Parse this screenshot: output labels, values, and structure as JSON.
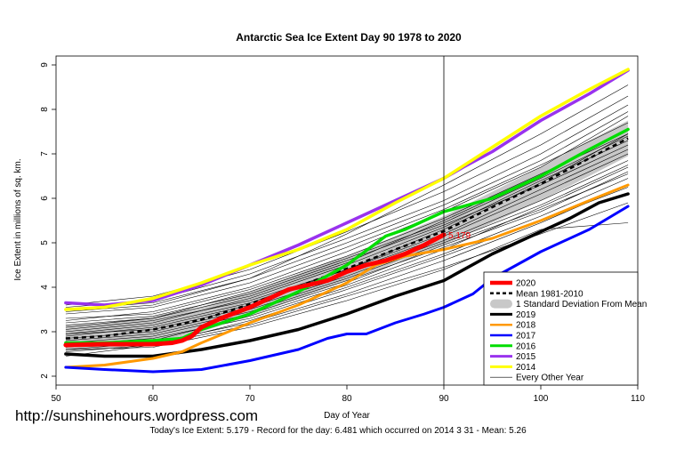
{
  "watermark": "http://sunshinehours.wordpress.com",
  "footer": "Today's Ice Extent: 5.179  - Record for the day: 6.481 which occurred on 2014 3 31  - Mean: 5.26",
  "chart_data": {
    "type": "line",
    "title": "Antarctic Sea Ice Extent Day 90 1978 to 2020",
    "xlabel": "Day of Year",
    "ylabel": "Ice Extent in millions of sq. km.",
    "xlim": [
      50,
      110
    ],
    "ylim": [
      1.8,
      9.2
    ],
    "xticks": [
      50,
      60,
      70,
      80,
      90,
      100,
      110
    ],
    "yticks": [
      2,
      3,
      4,
      5,
      6,
      7,
      8,
      9
    ],
    "grid": false,
    "legend_position": "bottom-right",
    "marker_line_x": 90,
    "current_value_label": "5.179",
    "current_value_point": [
      90,
      5.179
    ],
    "std_band": {
      "name": "1 Standard Deviation From Mean",
      "x": [
        51,
        55,
        60,
        65,
        70,
        75,
        80,
        85,
        90,
        95,
        100,
        105,
        109
      ],
      "lower": [
        2.55,
        2.6,
        2.75,
        3.0,
        3.35,
        3.75,
        4.15,
        4.55,
        4.95,
        5.45,
        5.95,
        6.5,
        6.95
      ],
      "upper": [
        3.15,
        3.2,
        3.35,
        3.55,
        3.9,
        4.3,
        4.7,
        5.15,
        5.6,
        6.15,
        6.7,
        7.3,
        7.75
      ]
    },
    "series": [
      {
        "name": "2020",
        "color": "#ff0000",
        "width": 5,
        "dash": "",
        "x": [
          51,
          55,
          60,
          62,
          63,
          64,
          65,
          67,
          70,
          72,
          74,
          76,
          78,
          80,
          82,
          84,
          86,
          88,
          90
        ],
        "y": [
          2.7,
          2.72,
          2.72,
          2.75,
          2.8,
          2.9,
          3.1,
          3.3,
          3.55,
          3.75,
          3.95,
          4.05,
          4.15,
          4.35,
          4.5,
          4.6,
          4.75,
          4.95,
          5.179
        ]
      },
      {
        "name": "Mean 1981-2010",
        "color": "#000000",
        "width": 2.5,
        "dash": "5,4",
        "x": [
          51,
          55,
          60,
          65,
          70,
          75,
          80,
          85,
          90,
          95,
          100,
          105,
          109
        ],
        "y": [
          2.85,
          2.9,
          3.05,
          3.27,
          3.62,
          4.02,
          4.42,
          4.85,
          5.26,
          5.8,
          6.32,
          6.9,
          7.35
        ]
      },
      {
        "name": "2019",
        "color": "#000000",
        "width": 3.5,
        "dash": "",
        "x": [
          51,
          55,
          60,
          65,
          70,
          75,
          80,
          85,
          90,
          95,
          100,
          103,
          106,
          109
        ],
        "y": [
          2.5,
          2.45,
          2.45,
          2.6,
          2.8,
          3.05,
          3.4,
          3.8,
          4.15,
          4.75,
          5.25,
          5.55,
          5.9,
          6.1
        ]
      },
      {
        "name": "2018",
        "color": "#ff9900",
        "width": 3,
        "dash": "",
        "x": [
          51,
          55,
          60,
          63,
          65,
          70,
          75,
          80,
          83,
          86,
          90,
          95,
          100,
          105,
          109
        ],
        "y": [
          2.2,
          2.25,
          2.4,
          2.55,
          2.75,
          3.2,
          3.6,
          4.1,
          4.5,
          4.7,
          4.85,
          5.1,
          5.5,
          5.95,
          6.3
        ]
      },
      {
        "name": "2017",
        "color": "#0000ff",
        "width": 3,
        "dash": "",
        "x": [
          51,
          55,
          60,
          65,
          70,
          75,
          78,
          80,
          82,
          85,
          88,
          90,
          93,
          95,
          100,
          105,
          109
        ],
        "y": [
          2.2,
          2.15,
          2.1,
          2.15,
          2.35,
          2.6,
          2.85,
          2.95,
          2.95,
          3.2,
          3.4,
          3.55,
          3.85,
          4.2,
          4.8,
          5.3,
          5.82
        ]
      },
      {
        "name": "2016",
        "color": "#00dd00",
        "width": 3.5,
        "dash": "",
        "x": [
          51,
          55,
          60,
          63,
          65,
          70,
          75,
          80,
          84,
          86,
          90,
          95,
          100,
          105,
          109
        ],
        "y": [
          2.75,
          2.75,
          2.8,
          2.85,
          3.05,
          3.4,
          3.9,
          4.5,
          5.15,
          5.3,
          5.7,
          6.0,
          6.5,
          7.1,
          7.55
        ]
      },
      {
        "name": "2015",
        "color": "#9933ee",
        "width": 3.5,
        "dash": "",
        "x": [
          51,
          55,
          60,
          65,
          70,
          75,
          80,
          85,
          90,
          92,
          95,
          100,
          105,
          109
        ],
        "y": [
          3.65,
          3.6,
          3.7,
          4.05,
          4.5,
          4.95,
          5.45,
          5.95,
          6.45,
          6.7,
          7.05,
          7.75,
          8.35,
          8.88
        ]
      },
      {
        "name": "2014",
        "color": "#ffff00",
        "width": 3.5,
        "dash": "",
        "x": [
          51,
          55,
          60,
          65,
          70,
          75,
          80,
          85,
          90,
          95,
          100,
          105,
          109
        ],
        "y": [
          3.5,
          3.55,
          3.75,
          4.1,
          4.5,
          4.85,
          5.3,
          5.9,
          6.45,
          7.15,
          7.85,
          8.45,
          8.9
        ]
      },
      {
        "name": "Every Other Year",
        "color": "#000000",
        "width": 0.6,
        "dash": "",
        "group": "other",
        "x": [
          51,
          60,
          70,
          80,
          90,
          100,
          109
        ],
        "y": [
          3.05,
          3.25,
          3.7,
          4.4,
          5.3,
          6.35,
          7.45
        ]
      },
      {
        "name": "",
        "color": "#000000",
        "width": 0.6,
        "dash": "",
        "group": "other",
        "x": [
          51,
          60,
          70,
          80,
          90,
          100,
          109
        ],
        "y": [
          2.8,
          2.95,
          3.45,
          4.15,
          4.9,
          5.7,
          6.6
        ]
      },
      {
        "name": "",
        "color": "#000000",
        "width": 0.6,
        "dash": "",
        "group": "other",
        "x": [
          51,
          60,
          70,
          80,
          90,
          100,
          109
        ],
        "y": [
          3.4,
          3.55,
          4.1,
          4.9,
          5.75,
          6.75,
          7.7
        ]
      },
      {
        "name": "",
        "color": "#000000",
        "width": 0.6,
        "dash": "",
        "group": "other",
        "x": [
          51,
          60,
          70,
          80,
          90,
          100,
          109
        ],
        "y": [
          2.6,
          2.75,
          3.2,
          3.85,
          4.6,
          5.45,
          6.3
        ]
      },
      {
        "name": "",
        "color": "#000000",
        "width": 0.6,
        "dash": "",
        "group": "other",
        "x": [
          51,
          60,
          70,
          80,
          90,
          100,
          109
        ],
        "y": [
          3.2,
          3.35,
          3.85,
          4.6,
          5.4,
          6.3,
          7.2
        ]
      },
      {
        "name": "",
        "color": "#000000",
        "width": 0.6,
        "dash": "",
        "group": "other",
        "x": [
          51,
          60,
          70,
          80,
          90,
          100,
          109
        ],
        "y": [
          2.95,
          3.05,
          3.55,
          4.25,
          5.05,
          5.95,
          6.85
        ]
      },
      {
        "name": "",
        "color": "#000000",
        "width": 0.6,
        "dash": "",
        "group": "other",
        "x": [
          51,
          60,
          70,
          80,
          90,
          100,
          109
        ],
        "y": [
          3.55,
          3.7,
          4.3,
          5.1,
          5.95,
          7.0,
          8.1
        ]
      },
      {
        "name": "",
        "color": "#000000",
        "width": 0.6,
        "dash": "",
        "group": "other",
        "x": [
          51,
          60,
          70,
          80,
          90,
          100,
          109
        ],
        "y": [
          2.7,
          2.85,
          3.3,
          4.0,
          4.75,
          5.6,
          6.45
        ]
      },
      {
        "name": "",
        "color": "#000000",
        "width": 0.6,
        "dash": "",
        "group": "other",
        "x": [
          51,
          60,
          70,
          80,
          90,
          100,
          109
        ],
        "y": [
          3.1,
          3.3,
          3.8,
          4.55,
          5.5,
          6.5,
          7.55
        ]
      },
      {
        "name": "",
        "color": "#000000",
        "width": 0.6,
        "dash": "",
        "group": "other",
        "x": [
          51,
          60,
          70,
          80,
          90,
          100,
          109
        ],
        "y": [
          2.9,
          3.1,
          3.6,
          4.35,
          5.15,
          6.1,
          7.0
        ]
      },
      {
        "name": "",
        "color": "#000000",
        "width": 0.6,
        "dash": "",
        "group": "other",
        "x": [
          51,
          60,
          70,
          80,
          90,
          100,
          109
        ],
        "y": [
          3.3,
          3.4,
          3.95,
          4.7,
          5.55,
          6.55,
          7.45
        ]
      },
      {
        "name": "",
        "color": "#000000",
        "width": 0.6,
        "dash": "",
        "group": "other",
        "x": [
          51,
          60,
          70,
          80,
          90,
          100,
          109
        ],
        "y": [
          2.45,
          2.7,
          3.15,
          3.8,
          4.45,
          5.2,
          5.9
        ]
      },
      {
        "name": "",
        "color": "#000000",
        "width": 0.6,
        "dash": "",
        "group": "other",
        "x": [
          51,
          60,
          70,
          80,
          90,
          100,
          109
        ],
        "y": [
          3.6,
          3.8,
          4.4,
          5.25,
          6.15,
          7.2,
          8.3
        ]
      },
      {
        "name": "",
        "color": "#000000",
        "width": 0.6,
        "dash": "",
        "group": "other",
        "x": [
          51,
          60,
          70,
          80,
          90,
          100,
          109
        ],
        "y": [
          2.85,
          3.0,
          3.5,
          4.2,
          5.0,
          5.85,
          6.75
        ]
      },
      {
        "name": "",
        "color": "#000000",
        "width": 0.6,
        "dash": "",
        "group": "other",
        "x": [
          51,
          60,
          70,
          80,
          90,
          100,
          109
        ],
        "y": [
          3.0,
          3.2,
          3.75,
          4.5,
          5.35,
          6.4,
          7.3
        ]
      },
      {
        "name": "",
        "color": "#000000",
        "width": 0.6,
        "dash": "",
        "group": "other",
        "x": [
          51,
          60,
          70,
          80,
          90,
          100,
          109
        ],
        "y": [
          2.65,
          2.8,
          3.35,
          4.05,
          4.85,
          5.8,
          6.7
        ]
      },
      {
        "name": "",
        "color": "#000000",
        "width": 0.6,
        "dash": "",
        "group": "other",
        "x": [
          51,
          60,
          70,
          80,
          90,
          100,
          109
        ],
        "y": [
          3.45,
          3.6,
          4.2,
          5.0,
          5.85,
          6.85,
          7.95
        ]
      },
      {
        "name": "",
        "color": "#000000",
        "width": 0.6,
        "dash": "",
        "group": "other",
        "x": [
          51,
          60,
          70,
          80,
          90,
          100,
          109
        ],
        "y": [
          2.75,
          2.9,
          3.4,
          4.1,
          4.95,
          5.75,
          6.55
        ]
      },
      {
        "name": "",
        "color": "#000000",
        "width": 0.6,
        "dash": "",
        "group": "other",
        "x": [
          51,
          60,
          70,
          80,
          90,
          100,
          109
        ],
        "y": [
          3.25,
          3.45,
          4.0,
          4.8,
          5.7,
          6.7,
          7.85
        ]
      },
      {
        "name": "",
        "color": "#000000",
        "width": 0.6,
        "dash": "",
        "group": "other",
        "x": [
          51,
          60,
          70,
          80,
          90,
          100,
          109
        ],
        "y": [
          2.55,
          2.7,
          3.25,
          3.95,
          4.7,
          5.5,
          6.25
        ]
      },
      {
        "name": "",
        "color": "#000000",
        "width": 0.6,
        "dash": "",
        "group": "other",
        "x": [
          51,
          60,
          70,
          80,
          90,
          100,
          109
        ],
        "y": [
          3.15,
          3.3,
          3.9,
          4.65,
          5.45,
          6.45,
          7.4
        ]
      },
      {
        "name": "",
        "color": "#000000",
        "width": 0.6,
        "dash": "",
        "group": "other",
        "x": [
          51,
          60,
          70,
          80,
          90,
          100,
          109
        ],
        "y": [
          3.5,
          3.65,
          4.2,
          5.2,
          6.3,
          7.45,
          8.55
        ]
      },
      {
        "name": "",
        "color": "#000000",
        "width": 0.6,
        "dash": "",
        "group": "other",
        "x": [
          51,
          60,
          70,
          80,
          90,
          100,
          109
        ],
        "y": [
          2.95,
          3.15,
          3.65,
          4.4,
          5.2,
          6.2,
          7.1
        ]
      },
      {
        "name": "",
        "color": "#000000",
        "width": 0.6,
        "dash": "",
        "group": "other",
        "x": [
          51,
          60,
          70,
          80,
          90,
          100,
          109
        ],
        "y": [
          2.6,
          2.65,
          3.1,
          3.7,
          4.4,
          5.3,
          5.45
        ]
      }
    ]
  }
}
